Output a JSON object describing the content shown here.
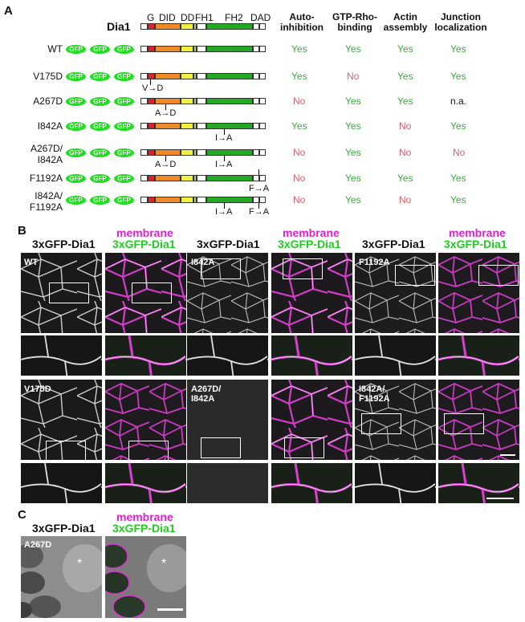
{
  "panelA": {
    "letter": "A",
    "protein": "Dia1",
    "domains": [
      "G",
      "DID",
      "DD",
      "FH1",
      "FH2",
      "DAD"
    ],
    "headers": {
      "h1": [
        "Auto-",
        "inhibition"
      ],
      "h2": [
        "GTP-Rho-",
        "binding"
      ],
      "h3": [
        "Actin",
        "assembly"
      ],
      "h4": [
        "Junction",
        "localization"
      ]
    },
    "gfp": "GFP",
    "rows": [
      {
        "label": [
          "WT"
        ],
        "vals": [
          "Yes",
          "Yes",
          "Yes",
          "Yes"
        ],
        "muts": []
      },
      {
        "label": [
          "V175D"
        ],
        "vals": [
          "Yes",
          "No",
          "Yes",
          "Yes"
        ],
        "muts": [
          "V→D"
        ]
      },
      {
        "label": [
          "A267D"
        ],
        "vals": [
          "No",
          "Yes",
          "Yes",
          "n.a."
        ],
        "muts": [
          "A→D"
        ]
      },
      {
        "label": [
          "I842A"
        ],
        "vals": [
          "Yes",
          "Yes",
          "No",
          "Yes"
        ],
        "muts": [
          "I→A"
        ]
      },
      {
        "label": [
          "A267D/",
          "I842A"
        ],
        "vals": [
          "No",
          "Yes",
          "No",
          "No"
        ],
        "muts": [
          "A→D",
          "I→A"
        ]
      },
      {
        "label": [
          "F1192A"
        ],
        "vals": [
          "No",
          "Yes",
          "Yes",
          "Yes"
        ],
        "muts": [
          "F→A"
        ]
      },
      {
        "label": [
          "I842A/",
          "F1192A"
        ],
        "vals": [
          "No",
          "Yes",
          "No",
          "Yes"
        ],
        "muts": [
          "I→A",
          "F→A"
        ]
      }
    ]
  },
  "panelB": {
    "letter": "B",
    "cap_gfp": "3xGFP-Dia1",
    "cap_membrane": "membrane",
    "cap_merge": "3xGFP-Dia1",
    "labels": {
      "wt": "WT",
      "i842a": "I842A",
      "f1192a": "F1192A",
      "v175d": "V175D",
      "a267d_l1": "A267D/",
      "a267d_l2": "I842A",
      "i842a_f_l1": "I842A/",
      "i842a_f_l2": "F1192A"
    }
  },
  "panelC": {
    "letter": "C",
    "cap_gfp": "3xGFP-Dia1",
    "cap_membrane": "membrane",
    "cap_merge": "3xGFP-Dia1",
    "label": "A267D",
    "asterisk": "*"
  },
  "colors": {
    "yes": "#3aaa3a",
    "no": "#e05c6a",
    "membrane": "#e020d0",
    "gfp": "#22cc22"
  }
}
